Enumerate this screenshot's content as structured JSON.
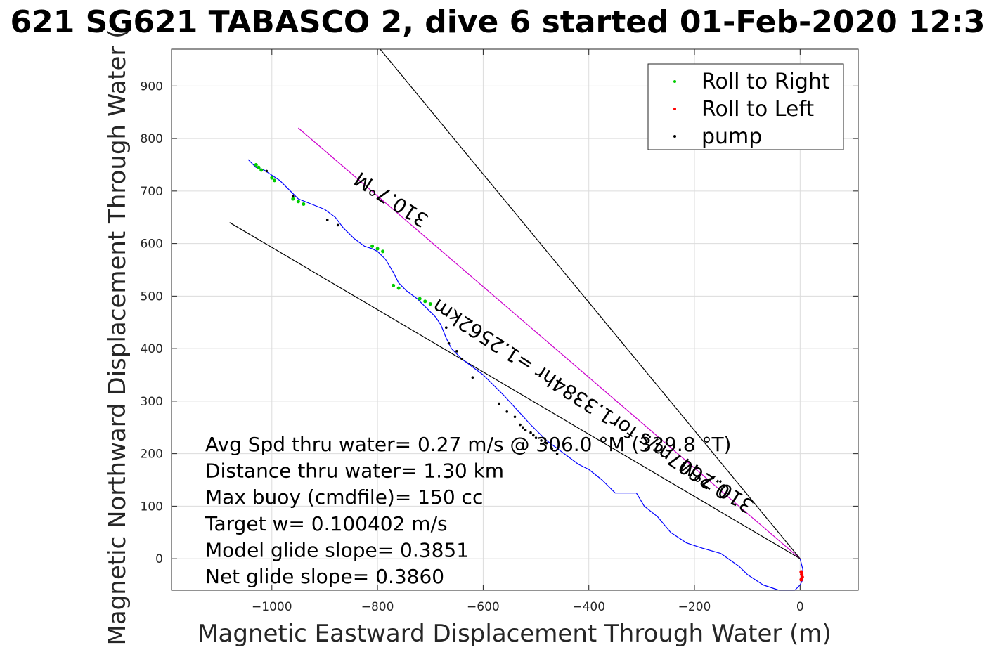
{
  "chart_data": {
    "type": "line",
    "title": "621 SG621 TABASCO 2, dive 6 started 01-Feb-2020 12:3",
    "xlabel": "Magnetic Eastward Displacement Through Water (m)",
    "ylabel": "Magnetic Northward Displacement Through Water (",
    "xlim": [
      -1190,
      110
    ],
    "ylim": [
      -60,
      970
    ],
    "xticks": [
      -1000,
      -800,
      -600,
      -400,
      -200,
      0
    ],
    "yticks": [
      0,
      100,
      200,
      300,
      400,
      500,
      600,
      700,
      800,
      900
    ],
    "grid": true,
    "legend": {
      "position": "top-right",
      "entries": [
        {
          "label": "Roll to Right",
          "color": "#00cc00"
        },
        {
          "label": "Roll to Left",
          "color": "#ff0000"
        },
        {
          "label": "pump",
          "color": "#000000"
        }
      ]
    },
    "track": {
      "color": "#0000ff",
      "x": [
        0,
        5,
        5,
        0,
        -10,
        -40,
        -70,
        -100,
        -115,
        -150,
        -185,
        -215,
        -245,
        -270,
        -295,
        -310,
        -330,
        -350,
        -375,
        -400,
        -420,
        -440,
        -460,
        -480,
        -510,
        -560,
        -600,
        -640,
        -660,
        -670,
        -680,
        -690,
        -700,
        -710,
        -725,
        -745,
        -760,
        -770,
        -785,
        -800,
        -810,
        -825,
        -845,
        -865,
        -880,
        -900,
        -925,
        -950,
        -970,
        -985,
        -1000,
        -1015,
        -1030,
        -1045
      ],
      "y": [
        0,
        -20,
        -40,
        -50,
        -60,
        -60,
        -50,
        -30,
        -15,
        10,
        20,
        30,
        50,
        80,
        100,
        125,
        125,
        125,
        150,
        170,
        180,
        195,
        210,
        225,
        255,
        310,
        350,
        380,
        400,
        420,
        445,
        460,
        470,
        480,
        495,
        510,
        525,
        545,
        570,
        585,
        590,
        595,
        610,
        630,
        650,
        665,
        675,
        685,
        705,
        720,
        730,
        740,
        745,
        760
      ]
    },
    "roll_right": {
      "x": [
        -1030,
        -1025,
        -1020,
        -1000,
        -995,
        -960,
        -950,
        -940,
        -810,
        -800,
        -790,
        -770,
        -760,
        -720,
        -710,
        -700
      ],
      "y": [
        750,
        745,
        740,
        725,
        720,
        685,
        680,
        675,
        595,
        590,
        585,
        520,
        515,
        495,
        490,
        485
      ]
    },
    "roll_left": {
      "x": [
        2,
        3,
        4,
        2
      ],
      "y": [
        -25,
        -30,
        -35,
        -40
      ]
    },
    "pump": {
      "x": [
        -1010,
        -960,
        -895,
        -875,
        -670,
        -665,
        -650,
        -640,
        -620,
        -570,
        -555,
        -540,
        -530,
        -525,
        -520,
        -510,
        -505,
        -500,
        -490,
        -480,
        -470,
        -460
      ],
      "y": [
        738,
        690,
        645,
        635,
        440,
        410,
        395,
        380,
        345,
        295,
        280,
        270,
        255,
        250,
        245,
        240,
        235,
        230,
        225,
        220,
        210,
        200
      ]
    },
    "reference_lines": [
      {
        "x": [
          0,
          -795
        ],
        "y": [
          0,
          970
        ],
        "color": "#000000",
        "label": ""
      },
      {
        "x": [
          0,
          -950
        ],
        "y": [
          0,
          820
        ],
        "color": "#cc00cc",
        "label": "310.7°M"
      },
      {
        "x": [
          0,
          -1080
        ],
        "y": [
          0,
          640
        ],
        "color": "#000000",
        "label": "310.7°M"
      }
    ],
    "line_labels": {
      "upper_heading": "310.7°M",
      "drift": "0.2607m/s for1.3384hr =1.2562km",
      "lower_heading": "310.7°M"
    },
    "annotations": [
      "Avg Spd thru water=  0.27 m/s @ 306.0 °M (339.8 °T)",
      "Distance thru water=  1.30 km",
      "Max buoy (cmdfile)= 150 cc",
      "Target w= 0.100402 m/s",
      "Model glide slope= 0.3851",
      "Net glide slope= 0.3860"
    ]
  }
}
